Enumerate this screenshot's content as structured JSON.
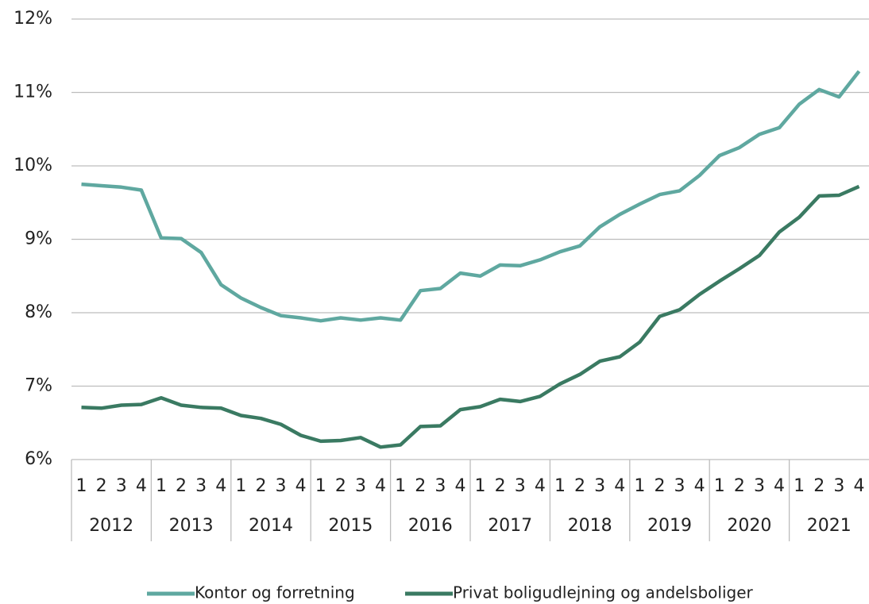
{
  "chart_data": {
    "type": "line",
    "categories": [
      "1",
      "2",
      "3",
      "4",
      "1",
      "2",
      "3",
      "4",
      "1",
      "2",
      "3",
      "4",
      "1",
      "2",
      "3",
      "4",
      "1",
      "2",
      "3",
      "4",
      "1",
      "2",
      "3",
      "4",
      "1",
      "2",
      "3",
      "4",
      "1",
      "2",
      "3",
      "4",
      "1",
      "2",
      "3",
      "4",
      "1",
      "2",
      "3",
      "4"
    ],
    "category_groups": [
      "2012",
      "2013",
      "2014",
      "2015",
      "2016",
      "2017",
      "2018",
      "2019",
      "2020",
      "2021"
    ],
    "series": [
      {
        "name": "Kontor og forretning",
        "color": "#5fa8a0",
        "values": [
          9.75,
          9.73,
          9.71,
          9.67,
          9.02,
          9.01,
          8.82,
          8.38,
          8.2,
          8.07,
          7.96,
          7.93,
          7.89,
          7.93,
          7.9,
          7.93,
          7.9,
          8.3,
          8.33,
          8.54,
          8.5,
          8.65,
          8.64,
          8.72,
          8.83,
          8.91,
          9.17,
          9.34,
          9.48,
          9.61,
          9.66,
          9.87,
          10.14,
          10.25,
          10.43,
          10.52,
          10.84,
          11.04,
          10.94,
          11.29
        ]
      },
      {
        "name": "Privat boligudlejning og andelsboliger",
        "color": "#3a7a62",
        "values": [
          6.71,
          6.7,
          6.74,
          6.75,
          6.84,
          6.74,
          6.71,
          6.7,
          6.6,
          6.56,
          6.48,
          6.33,
          6.25,
          6.26,
          6.3,
          6.17,
          6.2,
          6.45,
          6.46,
          6.68,
          6.72,
          6.82,
          6.79,
          6.86,
          7.03,
          7.16,
          7.34,
          7.4,
          7.6,
          7.95,
          8.04,
          8.25,
          8.43,
          8.6,
          8.78,
          9.1,
          9.3,
          9.59,
          9.6,
          9.72
        ]
      }
    ],
    "ylim": [
      6,
      12
    ],
    "yticks": [
      {
        "value": 6,
        "label": "6%"
      },
      {
        "value": 7,
        "label": "7%"
      },
      {
        "value": 8,
        "label": "8%"
      },
      {
        "value": 9,
        "label": "9%"
      },
      {
        "value": 10,
        "label": "10%"
      },
      {
        "value": 11,
        "label": "11%"
      },
      {
        "value": 12,
        "label": "12%"
      }
    ],
    "grid": true,
    "legend": "bottom"
  }
}
